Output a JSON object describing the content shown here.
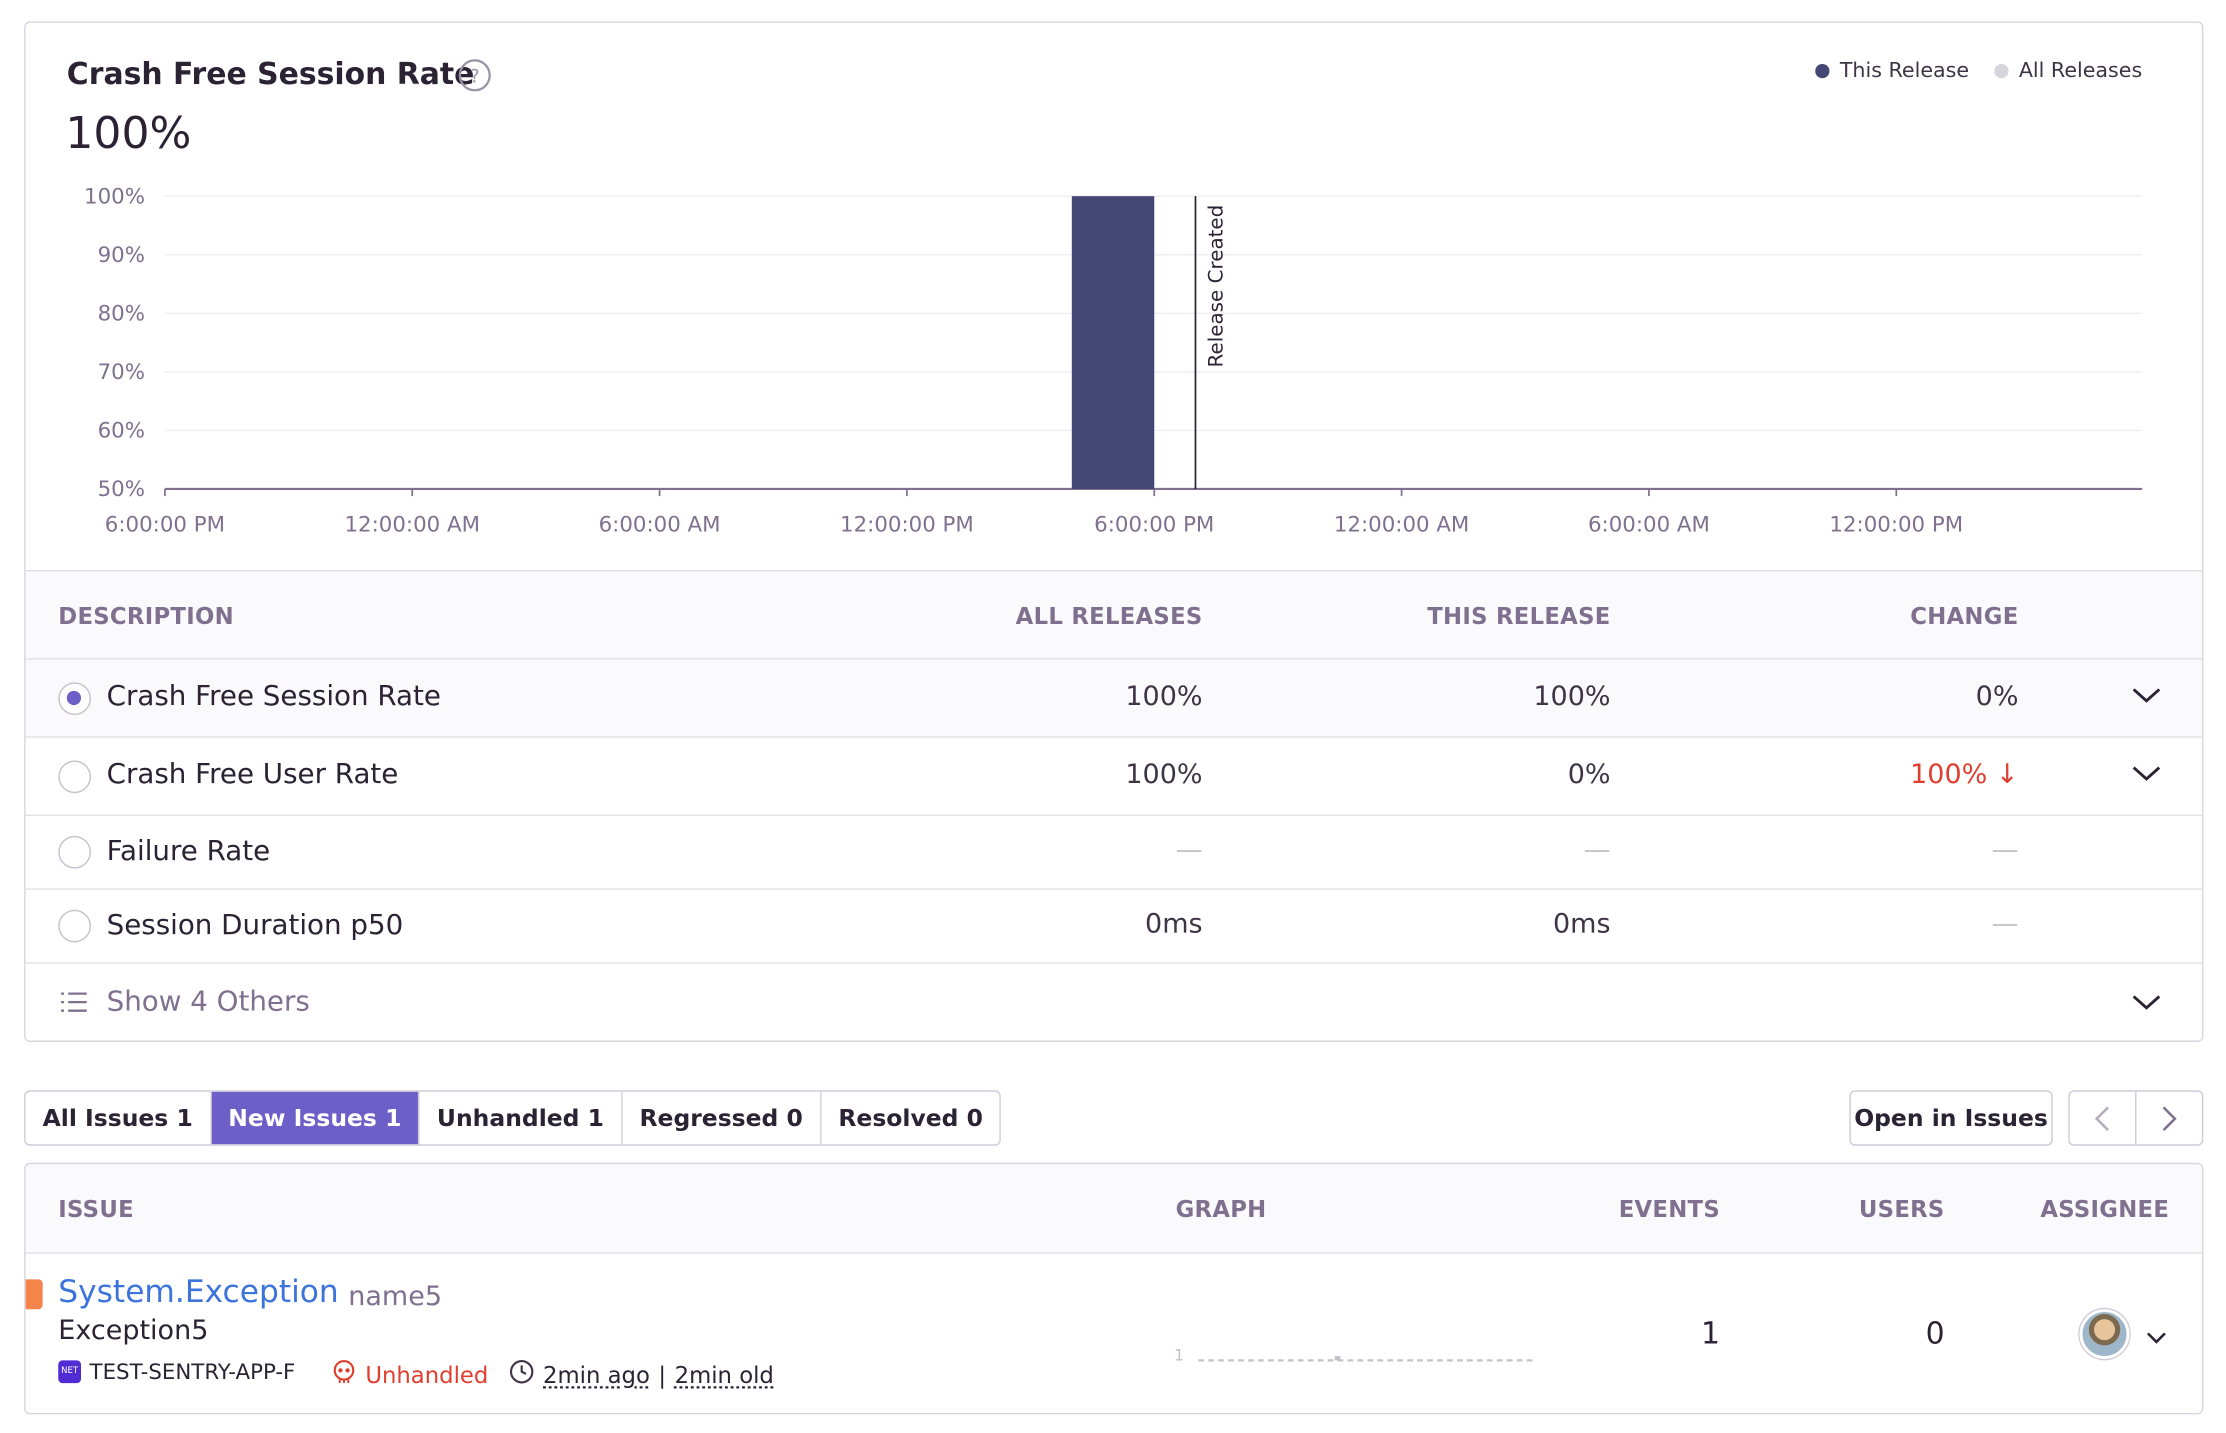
{
  "chart": {
    "title": "Crash Free Session Rate",
    "value": "100%",
    "legend": [
      {
        "label": "This Release",
        "color": "#444674"
      },
      {
        "label": "All Releases",
        "color": "#d7d5dc"
      }
    ]
  },
  "chart_data": {
    "type": "bar",
    "title": "Crash Free Session Rate",
    "xlabel": "",
    "ylabel": "",
    "ylim": [
      50,
      100
    ],
    "y_ticks": [
      "100%",
      "90%",
      "80%",
      "70%",
      "60%",
      "50%"
    ],
    "x_ticks": [
      "6:00:00 PM",
      "12:00:00 AM",
      "6:00:00 AM",
      "12:00:00 PM",
      "6:00:00 PM",
      "12:00:00 AM",
      "6:00:00 AM",
      "12:00:00 PM"
    ],
    "x_tick_hours": [
      0,
      6,
      12,
      18,
      24,
      30,
      36,
      42
    ],
    "series": [
      {
        "name": "This Release",
        "bars": [
          {
            "start_hour": 22,
            "end_hour": 24,
            "value": 100
          }
        ]
      }
    ],
    "markers": [
      {
        "label": "Release Created",
        "hour": 25
      }
    ],
    "grid": true,
    "legend_position": "top-right"
  },
  "metrics": {
    "headers": {
      "description": "DESCRIPTION",
      "all_releases": "ALL RELEASES",
      "this_release": "THIS RELEASE",
      "change": "CHANGE"
    },
    "rows": [
      {
        "label": "Crash Free Session Rate",
        "all": "100%",
        "this": "100%",
        "change": "0%",
        "arrow": ""
      },
      {
        "label": "Crash Free User Rate",
        "all": "100%",
        "this": "0%",
        "change": "100%",
        "arrow": "↓"
      },
      {
        "label": "Failure Rate",
        "all": "—",
        "this": "—",
        "change": "—",
        "arrow": ""
      },
      {
        "label": "Session Duration p50",
        "all": "0ms",
        "this": "0ms",
        "change": "—",
        "arrow": ""
      }
    ],
    "show_others": "Show 4 Others"
  },
  "tabs": [
    {
      "label": "All Issues",
      "count": "1"
    },
    {
      "label": "New Issues",
      "count": "1"
    },
    {
      "label": "Unhandled",
      "count": "1"
    },
    {
      "label": "Regressed",
      "count": "0"
    },
    {
      "label": "Resolved",
      "count": "0"
    }
  ],
  "open_in_issues": "Open in Issues",
  "issues": {
    "headers": {
      "issue": "ISSUE",
      "graph": "GRAPH",
      "events": "EVENTS",
      "users": "USERS",
      "assignee": "ASSIGNEE"
    },
    "row": {
      "title": "System.Exception",
      "culprit": "name5",
      "message": "Exception5",
      "project": "TEST-SENTRY-APP-F",
      "project_badge": "NET",
      "unhandled": "Unhandled",
      "last_seen": "2min ago",
      "first_seen": "2min old",
      "graph_label": "1",
      "events": "1",
      "users": "0"
    }
  }
}
